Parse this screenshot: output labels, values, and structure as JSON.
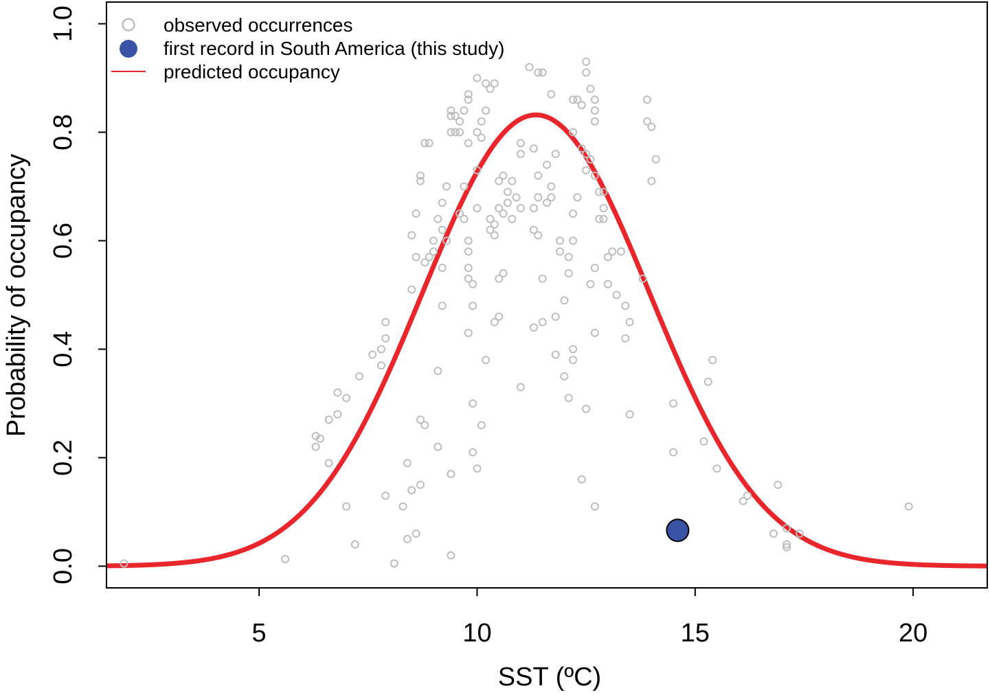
{
  "chart_data": {
    "type": "scatter",
    "xlabel": "SST (ºC)",
    "ylabel": "Probability of occupancy",
    "xlim": [
      1.5,
      21.7
    ],
    "ylim": [
      -0.04,
      1.04
    ],
    "x_ticks": [
      5,
      10,
      15,
      20
    ],
    "x_tick_labels": [
      "5",
      "10",
      "15",
      "20"
    ],
    "y_ticks": [
      0.0,
      0.2,
      0.4,
      0.6,
      0.8,
      1.0
    ],
    "y_tick_labels": [
      "0.0",
      "0.2",
      "0.4",
      "0.6",
      "0.8",
      "1.0"
    ],
    "grid": false,
    "legend_position": "top-left",
    "legend": [
      {
        "label": "observed occurrences",
        "kind": "open-circle",
        "color": "#BEBEBE"
      },
      {
        "label": "first record in South America (this study)",
        "kind": "filled-circle",
        "color": "#3A53A4"
      },
      {
        "label": "predicted occupancy",
        "kind": "line",
        "color": "#E8262B"
      }
    ],
    "series": [
      {
        "name": "observed occurrences",
        "kind": "scatter",
        "color": "#BEBEBE",
        "points": [
          [
            1.9,
            0.005
          ],
          [
            5.6,
            0.013
          ],
          [
            6.3,
            0.24
          ],
          [
            6.3,
            0.22
          ],
          [
            6.4,
            0.235
          ],
          [
            6.6,
            0.27
          ],
          [
            6.6,
            0.19
          ],
          [
            6.8,
            0.32
          ],
          [
            6.8,
            0.28
          ],
          [
            7.0,
            0.31
          ],
          [
            7.0,
            0.11
          ],
          [
            7.2,
            0.04
          ],
          [
            7.3,
            0.35
          ],
          [
            7.6,
            0.39
          ],
          [
            7.8,
            0.4
          ],
          [
            7.8,
            0.37
          ],
          [
            7.9,
            0.45
          ],
          [
            7.9,
            0.42
          ],
          [
            7.9,
            0.13
          ],
          [
            8.1,
            0.005
          ],
          [
            8.3,
            0.11
          ],
          [
            8.4,
            0.19
          ],
          [
            8.4,
            0.05
          ],
          [
            8.5,
            0.51
          ],
          [
            8.5,
            0.61
          ],
          [
            8.5,
            0.14
          ],
          [
            8.6,
            0.65
          ],
          [
            8.6,
            0.57
          ],
          [
            8.6,
            0.06
          ],
          [
            8.7,
            0.15
          ],
          [
            8.7,
            0.27
          ],
          [
            8.7,
            0.72
          ],
          [
            8.7,
            0.71
          ],
          [
            8.8,
            0.78
          ],
          [
            8.8,
            0.56
          ],
          [
            8.8,
            0.26
          ],
          [
            8.9,
            0.57
          ],
          [
            8.9,
            0.78
          ],
          [
            9.0,
            0.58
          ],
          [
            9.0,
            0.6
          ],
          [
            9.1,
            0.64
          ],
          [
            9.1,
            0.36
          ],
          [
            9.1,
            0.22
          ],
          [
            9.2,
            0.62
          ],
          [
            9.2,
            0.67
          ],
          [
            9.2,
            0.48
          ],
          [
            9.2,
            0.55
          ],
          [
            9.3,
            0.7
          ],
          [
            9.3,
            0.6
          ],
          [
            9.4,
            0.83
          ],
          [
            9.4,
            0.84
          ],
          [
            9.4,
            0.8
          ],
          [
            9.4,
            0.17
          ],
          [
            9.4,
            0.02
          ],
          [
            9.5,
            0.8
          ],
          [
            9.5,
            0.83
          ],
          [
            9.6,
            0.82
          ],
          [
            9.6,
            0.8
          ],
          [
            9.6,
            0.65
          ],
          [
            9.7,
            0.7
          ],
          [
            9.7,
            0.64
          ],
          [
            9.7,
            0.84
          ],
          [
            9.8,
            0.87
          ],
          [
            9.8,
            0.86
          ],
          [
            9.8,
            0.78
          ],
          [
            9.8,
            0.43
          ],
          [
            9.8,
            0.6
          ],
          [
            9.8,
            0.58
          ],
          [
            9.8,
            0.55
          ],
          [
            9.8,
            0.53
          ],
          [
            9.9,
            0.3
          ],
          [
            9.9,
            0.21
          ],
          [
            9.9,
            0.48
          ],
          [
            9.9,
            0.52
          ],
          [
            10.0,
            0.18
          ],
          [
            10.0,
            0.8
          ],
          [
            10.0,
            0.9
          ],
          [
            10.0,
            0.73
          ],
          [
            10.0,
            0.66
          ],
          [
            10.1,
            0.82
          ],
          [
            10.1,
            0.79
          ],
          [
            10.1,
            0.26
          ],
          [
            10.2,
            0.89
          ],
          [
            10.2,
            0.84
          ],
          [
            10.2,
            0.38
          ],
          [
            10.3,
            0.88
          ],
          [
            10.3,
            0.64
          ],
          [
            10.3,
            0.62
          ],
          [
            10.4,
            0.89
          ],
          [
            10.4,
            0.63
          ],
          [
            10.4,
            0.61
          ],
          [
            10.4,
            0.45
          ],
          [
            10.5,
            0.66
          ],
          [
            10.5,
            0.71
          ],
          [
            10.5,
            0.53
          ],
          [
            10.5,
            0.46
          ],
          [
            10.6,
            0.72
          ],
          [
            10.6,
            0.54
          ],
          [
            10.6,
            0.65
          ],
          [
            10.7,
            0.67
          ],
          [
            10.7,
            0.69
          ],
          [
            10.8,
            0.71
          ],
          [
            10.8,
            0.64
          ],
          [
            10.9,
            0.68
          ],
          [
            11.0,
            0.78
          ],
          [
            11.0,
            0.76
          ],
          [
            11.0,
            0.66
          ],
          [
            11.0,
            0.33
          ],
          [
            11.2,
            0.92
          ],
          [
            11.3,
            0.77
          ],
          [
            11.3,
            0.66
          ],
          [
            11.3,
            0.62
          ],
          [
            11.3,
            0.44
          ],
          [
            11.4,
            0.91
          ],
          [
            11.4,
            0.72
          ],
          [
            11.4,
            0.68
          ],
          [
            11.4,
            0.61
          ],
          [
            11.5,
            0.91
          ],
          [
            11.5,
            0.53
          ],
          [
            11.5,
            0.45
          ],
          [
            11.6,
            0.74
          ],
          [
            11.6,
            0.67
          ],
          [
            11.7,
            0.87
          ],
          [
            11.7,
            0.7
          ],
          [
            11.7,
            0.68
          ],
          [
            11.8,
            0.76
          ],
          [
            11.8,
            0.39
          ],
          [
            11.8,
            0.46
          ],
          [
            11.9,
            0.6
          ],
          [
            11.9,
            0.58
          ],
          [
            12.0,
            0.35
          ],
          [
            12.0,
            0.49
          ],
          [
            12.1,
            0.57
          ],
          [
            12.1,
            0.54
          ],
          [
            12.1,
            0.31
          ],
          [
            12.2,
            0.8
          ],
          [
            12.2,
            0.86
          ],
          [
            12.2,
            0.65
          ],
          [
            12.2,
            0.6
          ],
          [
            12.2,
            0.4
          ],
          [
            12.2,
            0.38
          ],
          [
            12.3,
            0.86
          ],
          [
            12.3,
            0.68
          ],
          [
            12.4,
            0.85
          ],
          [
            12.4,
            0.77
          ],
          [
            12.4,
            0.16
          ],
          [
            12.5,
            0.91
          ],
          [
            12.5,
            0.93
          ],
          [
            12.5,
            0.76
          ],
          [
            12.5,
            0.73
          ],
          [
            12.5,
            0.29
          ],
          [
            12.6,
            0.88
          ],
          [
            12.6,
            0.75
          ],
          [
            12.6,
            0.52
          ],
          [
            12.7,
            0.82
          ],
          [
            12.7,
            0.86
          ],
          [
            12.7,
            0.84
          ],
          [
            12.7,
            0.72
          ],
          [
            12.7,
            0.55
          ],
          [
            12.7,
            0.43
          ],
          [
            12.7,
            0.11
          ],
          [
            12.8,
            0.69
          ],
          [
            12.8,
            0.64
          ],
          [
            12.9,
            0.66
          ],
          [
            12.9,
            0.64
          ],
          [
            12.9,
            0.69
          ],
          [
            13.0,
            0.57
          ],
          [
            13.0,
            0.52
          ],
          [
            13.1,
            0.58
          ],
          [
            13.2,
            0.5
          ],
          [
            13.3,
            0.58
          ],
          [
            13.4,
            0.48
          ],
          [
            13.4,
            0.42
          ],
          [
            13.5,
            0.45
          ],
          [
            13.5,
            0.28
          ],
          [
            13.8,
            0.53
          ],
          [
            13.9,
            0.86
          ],
          [
            13.9,
            0.82
          ],
          [
            14.0,
            0.81
          ],
          [
            14.0,
            0.71
          ],
          [
            14.1,
            0.75
          ],
          [
            14.5,
            0.3
          ],
          [
            14.5,
            0.21
          ],
          [
            15.2,
            0.23
          ],
          [
            15.3,
            0.34
          ],
          [
            15.4,
            0.38
          ],
          [
            15.5,
            0.18
          ],
          [
            16.1,
            0.12
          ],
          [
            16.2,
            0.13
          ],
          [
            16.8,
            0.06
          ],
          [
            16.9,
            0.15
          ],
          [
            17.1,
            0.07
          ],
          [
            17.1,
            0.04
          ],
          [
            17.1,
            0.035
          ],
          [
            17.4,
            0.06
          ],
          [
            19.9,
            0.11
          ]
        ]
      },
      {
        "name": "first record in South America (this study)",
        "kind": "scatter",
        "color": "#3A53A4",
        "points": [
          [
            14.6,
            0.066
          ]
        ]
      },
      {
        "name": "predicted occupancy",
        "kind": "line",
        "color": "#E8262B",
        "curve_params": {
          "peak": 0.832,
          "center_sst": 11.35,
          "sd_sst": 2.6
        },
        "x_range": [
          1.5,
          21.7
        ]
      }
    ]
  }
}
